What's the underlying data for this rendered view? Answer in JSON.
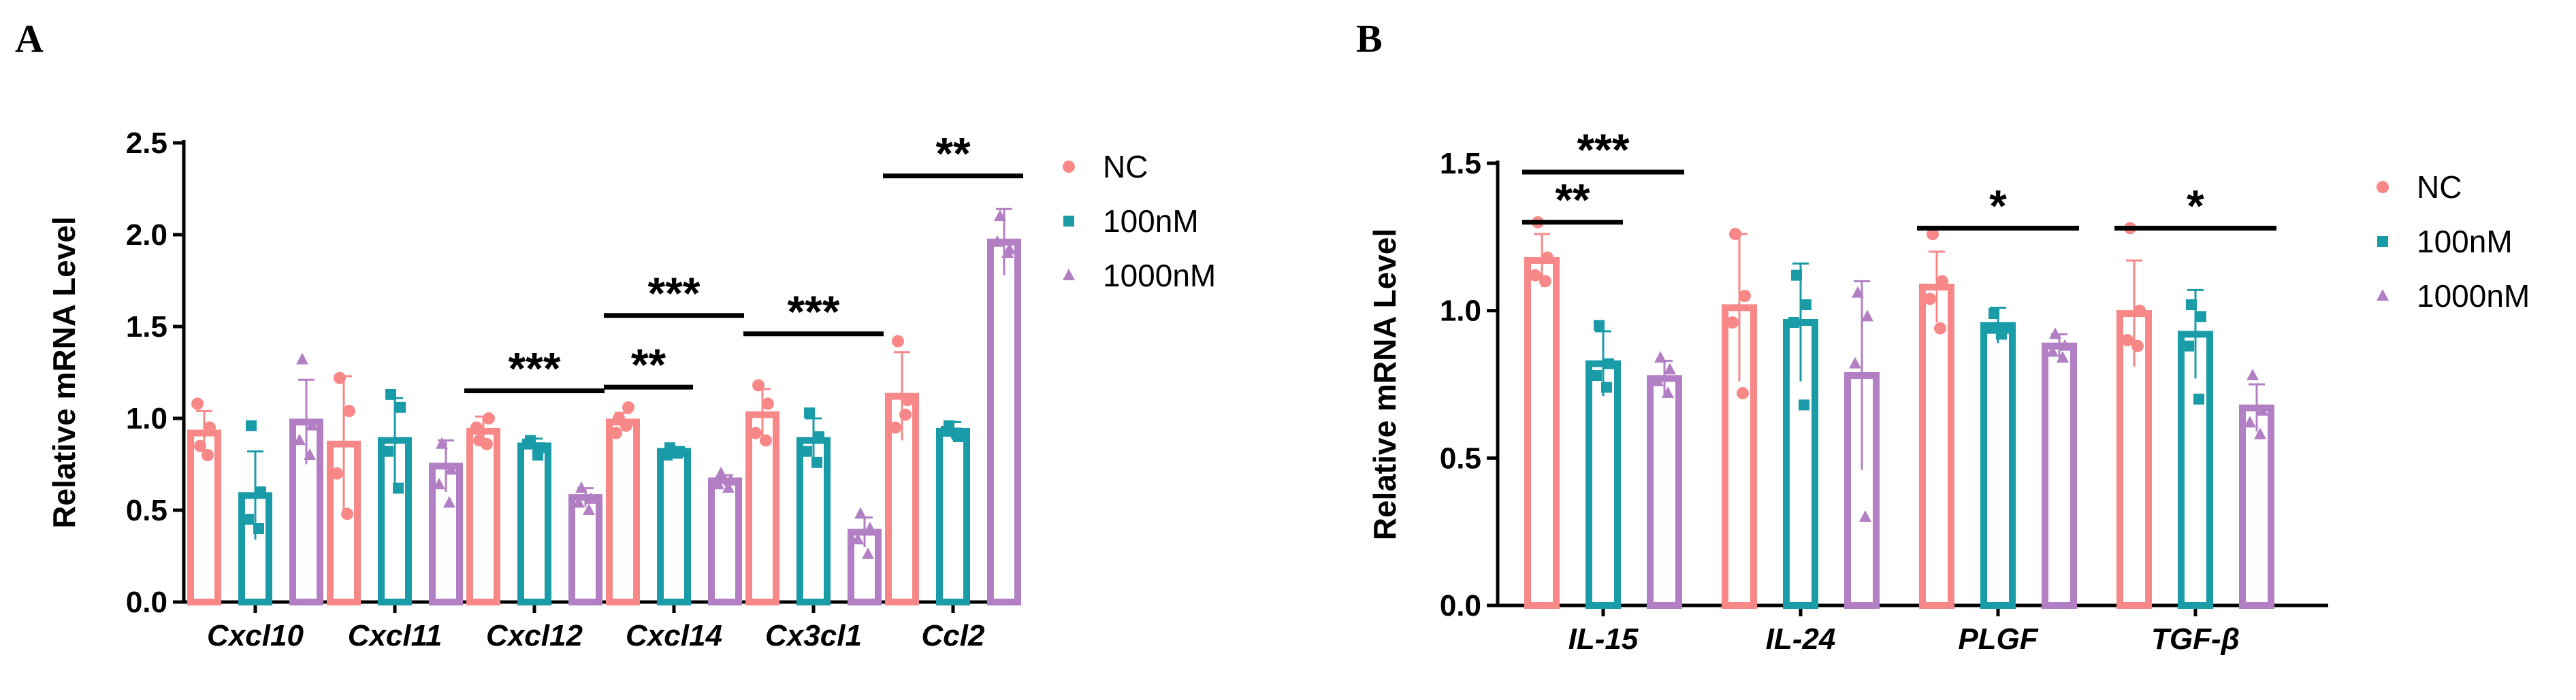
{
  "figure": {
    "panels": [
      {
        "letter": "A"
      },
      {
        "letter": "B"
      }
    ]
  },
  "chart_data": [
    {
      "type": "bar",
      "panel": "A",
      "ylabel": "Relative mRNA Level",
      "ylim": [
        0,
        2.5
      ],
      "yticks": [
        "0.0",
        "0.5",
        "1.0",
        "1.5",
        "2.0",
        "2.5"
      ],
      "categories": [
        "Cxcl10",
        "Cxcl11",
        "Cxcl12",
        "Cxcl14",
        "Cx3cl1",
        "Ccl2"
      ],
      "series": [
        {
          "name": "NC",
          "color": "#F88888",
          "marker": "circle",
          "values": [
            0.92,
            0.86,
            0.93,
            0.98,
            1.02,
            1.12
          ],
          "errors": [
            0.12,
            0.37,
            0.08,
            0.05,
            0.14,
            0.24
          ],
          "points": [
            [
              0.85,
              0.95,
              1.08,
              0.8
            ],
            [
              1.22,
              1.04,
              0.7,
              0.48
            ],
            [
              0.88,
              1.0,
              0.95,
              0.86
            ],
            [
              1.0,
              1.06,
              0.92,
              0.96
            ],
            [
              1.18,
              1.08,
              0.92,
              0.88
            ],
            [
              1.42,
              1.1,
              0.95,
              1.02
            ]
          ]
        },
        {
          "name": "100nM",
          "color": "#1A9BA8",
          "marker": "square",
          "values": [
            0.58,
            0.88,
            0.85,
            0.82,
            0.88,
            0.93
          ],
          "errors": [
            0.24,
            0.23,
            0.04,
            0.02,
            0.12,
            0.05
          ],
          "points": [
            [
              0.96,
              0.6,
              0.45,
              0.4
            ],
            [
              1.13,
              1.06,
              0.82,
              0.62
            ],
            [
              0.88,
              0.84,
              0.86,
              0.8
            ],
            [
              0.84,
              0.82,
              0.8,
              0.81
            ],
            [
              1.03,
              0.9,
              0.82,
              0.76
            ],
            [
              0.96,
              0.9,
              0.93,
              0.92
            ]
          ]
        },
        {
          "name": "1000nM",
          "color": "#B27FC4",
          "marker": "triangle",
          "values": [
            0.98,
            0.74,
            0.57,
            0.66,
            0.38,
            1.96
          ],
          "errors": [
            0.23,
            0.14,
            0.05,
            0.03,
            0.08,
            0.18
          ],
          "points": [
            [
              1.32,
              0.96,
              0.88,
              0.8
            ],
            [
              0.86,
              0.72,
              0.64,
              0.54
            ],
            [
              0.62,
              0.56,
              0.54,
              0.5
            ],
            [
              0.7,
              0.66,
              0.64,
              0.62
            ],
            [
              0.48,
              0.4,
              0.34,
              0.26
            ],
            [
              2.1,
              1.92,
              1.96,
              1.9
            ]
          ]
        }
      ],
      "significance": [
        {
          "label": "***",
          "category": 2,
          "from_series": 0,
          "to_series": 2,
          "y": 1.15
        },
        {
          "label": "**",
          "category": 3,
          "from_series": 0,
          "to_series": 1,
          "y": 1.17
        },
        {
          "label": "***",
          "category": 3,
          "from_series": 0,
          "to_series": 2,
          "y": 1.56
        },
        {
          "label": "***",
          "category": 4,
          "from_series": 0,
          "to_series": 2,
          "y": 1.46
        },
        {
          "label": "**",
          "category": 5,
          "from_series": 0,
          "to_series": 2,
          "y": 2.32
        }
      ],
      "legend": {
        "position": "right"
      }
    },
    {
      "type": "bar",
      "panel": "B",
      "ylabel": "Relative mRNA Level",
      "ylim": [
        0,
        1.5
      ],
      "yticks": [
        "0.0",
        "0.5",
        "1.0",
        "1.5"
      ],
      "categories": [
        "IL-15",
        "IL-24",
        "PLGF",
        "TGF-β"
      ],
      "series": [
        {
          "name": "NC",
          "color": "#F88888",
          "marker": "circle",
          "values": [
            1.17,
            1.01,
            1.08,
            0.99
          ],
          "errors": [
            0.09,
            0.25,
            0.12,
            0.18
          ],
          "points": [
            [
              1.3,
              1.18,
              1.12,
              1.1
            ],
            [
              1.26,
              1.05,
              0.96,
              0.72
            ],
            [
              1.26,
              1.1,
              1.04,
              0.94
            ],
            [
              1.28,
              1.0,
              0.9,
              0.88
            ]
          ]
        },
        {
          "name": "100nM",
          "color": "#1A9BA8",
          "marker": "square",
          "values": [
            0.82,
            0.96,
            0.95,
            0.92
          ],
          "errors": [
            0.11,
            0.2,
            0.06,
            0.15
          ],
          "points": [
            [
              0.95,
              0.82,
              0.78,
              0.74
            ],
            [
              1.12,
              1.02,
              0.96,
              0.68
            ],
            [
              0.99,
              0.94,
              0.94,
              0.92
            ],
            [
              1.02,
              0.98,
              0.88,
              0.7
            ]
          ]
        },
        {
          "name": "1000nM",
          "color": "#B27FC4",
          "marker": "triangle",
          "values": [
            0.77,
            0.78,
            0.88,
            0.67
          ],
          "errors": [
            0.06,
            0.32,
            0.04,
            0.08
          ],
          "points": [
            [
              0.84,
              0.8,
              0.76,
              0.72
            ],
            [
              1.06,
              0.98,
              0.82,
              0.3
            ],
            [
              0.92,
              0.88,
              0.86,
              0.84
            ],
            [
              0.78,
              0.66,
              0.62,
              0.58
            ]
          ]
        }
      ],
      "significance": [
        {
          "label": "***",
          "category": 0,
          "from_series": 0,
          "to_series": 2,
          "y": 1.47
        },
        {
          "label": "**",
          "category": 0,
          "from_series": 0,
          "to_series": 1,
          "y": 1.3
        },
        {
          "label": "*",
          "category": 2,
          "from_series": 0,
          "to_series": 2,
          "y": 1.28
        },
        {
          "label": "*",
          "category": 3,
          "from_series": 0,
          "to_series": 2,
          "y": 1.28
        }
      ],
      "legend": {
        "position": "right"
      }
    }
  ]
}
